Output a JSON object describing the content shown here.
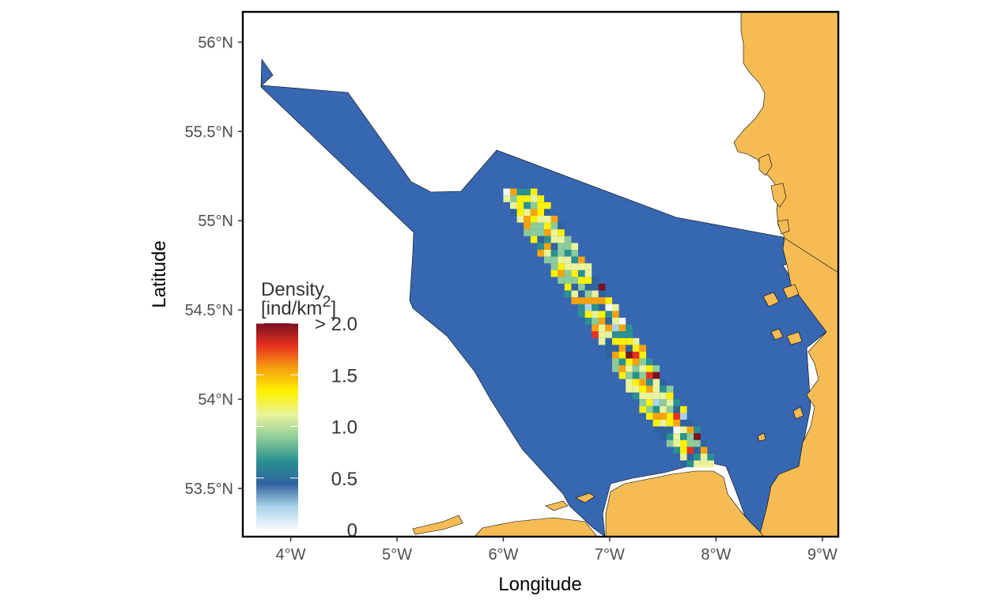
{
  "figure": {
    "x_axis_label": "Longitude",
    "y_axis_label": "Latitude",
    "x_ticks": [
      {
        "value": -4,
        "label": "4°W"
      },
      {
        "value": -5,
        "label": "5°W"
      },
      {
        "value": -6,
        "label": "6°W"
      },
      {
        "value": -7,
        "label": "7°W"
      },
      {
        "value": -8,
        "label": "8°W"
      },
      {
        "value": -9,
        "label": "9°W"
      }
    ],
    "y_ticks": [
      {
        "value": 53.5,
        "label": "53.5°N"
      },
      {
        "value": 54.0,
        "label": "54°N"
      },
      {
        "value": 54.5,
        "label": "54.5°N"
      },
      {
        "value": 55.0,
        "label": "55°N"
      },
      {
        "value": 55.5,
        "label": "55.5°N"
      },
      {
        "value": 56.0,
        "label": "56°N"
      }
    ],
    "x_range": [
      -3.55,
      -9.15
    ],
    "y_range": [
      53.23,
      56.17
    ]
  },
  "legend": {
    "title_line1": "Density",
    "title_line2": "[ind/km",
    "title_sup": "2",
    "title_close": "]",
    "labels": [
      {
        "value": 0,
        "label": "0"
      },
      {
        "value": 0.5,
        "label": "0.5"
      },
      {
        "value": 1.0,
        "label": "1.0"
      },
      {
        "value": 1.5,
        "label": "1.5"
      },
      {
        "value": 2.0,
        "label": "> 2.0"
      }
    ],
    "range": [
      0,
      2.0
    ],
    "gradient_stops": [
      "#f7fbff",
      "#a9d3ea",
      "#2f63a0",
      "#2a9090",
      "#8ccc9a",
      "#eaf39c",
      "#fff200",
      "#f7a30e",
      "#e8321e",
      "#7a1020"
    ]
  },
  "colors": {
    "sea_area": "#3767b1",
    "land": "#f5bc55",
    "frame": "#000000"
  },
  "chart_data": {
    "type": "heatmap",
    "x_label": "Longitude",
    "y_label": "Latitude",
    "x_range": [
      -3.55,
      -9.15
    ],
    "y_range": [
      53.23,
      56.17
    ],
    "survey_strip": {
      "corner_nw": [
        -6.15,
        55.18
      ],
      "corner_se": [
        -8.05,
        53.65
      ],
      "width_deg_lon": 0.4
    },
    "value_range": [
      0,
      2.0
    ]
  }
}
